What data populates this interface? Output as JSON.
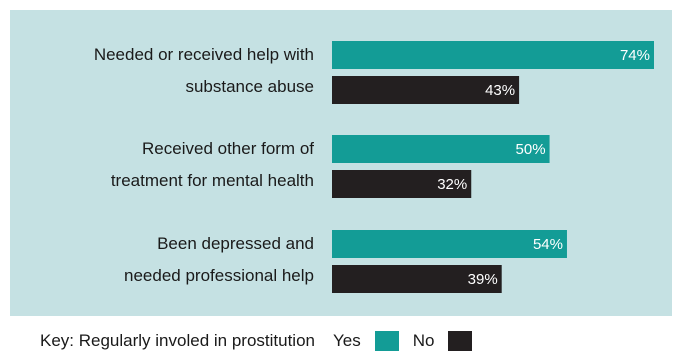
{
  "chart_data": {
    "type": "bar",
    "orientation": "horizontal",
    "categories": [
      [
        "Needed or received help with",
        "substance abuse"
      ],
      [
        "Received other form of",
        "treatment for mental health"
      ],
      [
        "Been depressed and",
        "needed professional help"
      ]
    ],
    "series": [
      {
        "name": "Yes",
        "values": [
          74,
          50,
          54
        ],
        "color": "#139c96"
      },
      {
        "name": "No",
        "values": [
          43,
          32,
          39
        ],
        "color": "#231f20"
      }
    ],
    "value_suffix": "%",
    "xlim": [
      0,
      74
    ],
    "grid": false,
    "background": "#c5e1e3",
    "legend_position": "bottom-left"
  },
  "legend": {
    "prefix": "Key: Regularly involed in prostitution",
    "yes_label": "Yes",
    "no_label": "No"
  }
}
